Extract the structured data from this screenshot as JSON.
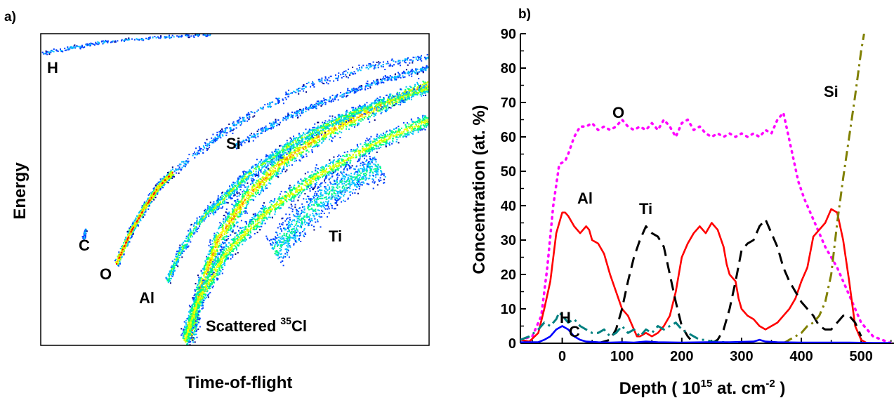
{
  "chart_data": [
    {
      "panel": "a)",
      "type": "heatmap",
      "xlabel": "Time-of-flight",
      "ylabel": "Energy",
      "element_labels": [
        "H",
        "C",
        "O",
        "Al",
        "Si",
        "Ti"
      ],
      "scattered_label": {
        "text": "Scattered ",
        "isotope": "35",
        "element": "Cl"
      },
      "colormap": [
        "#000080",
        "#0040ff",
        "#00c0ff",
        "#00ff80",
        "#c0ff00",
        "#ffff00",
        "#ff8000",
        "#ff0000"
      ]
    },
    {
      "panel": "b)",
      "type": "line",
      "xlabel_parts": {
        "pre": "Depth ( 10",
        "sup1": "15",
        "mid": " at. cm",
        "sup2": "-2",
        "post": " )"
      },
      "ylabel": "Concentration (at. %)",
      "xlim": [
        -70,
        555
      ],
      "ylim": [
        0,
        90
      ],
      "xticks": [
        0,
        100,
        200,
        300,
        400,
        500
      ],
      "yticks": [
        0,
        10,
        20,
        30,
        40,
        50,
        60,
        70,
        80,
        90
      ],
      "series": [
        {
          "name": "O",
          "color": "#ff00ff",
          "dash": "dot",
          "x": [
            -70,
            -50,
            -35,
            -25,
            -15,
            -5,
            5,
            10,
            20,
            30,
            40,
            50,
            60,
            70,
            80,
            90,
            100,
            110,
            120,
            130,
            140,
            150,
            160,
            170,
            180,
            190,
            200,
            210,
            220,
            230,
            240,
            250,
            260,
            270,
            280,
            290,
            300,
            310,
            320,
            330,
            340,
            350,
            360,
            370,
            375,
            385,
            395,
            405,
            420,
            440,
            460,
            480,
            500,
            520,
            550
          ],
          "y": [
            1,
            2,
            8,
            22,
            40,
            52,
            53,
            55,
            60,
            63,
            63,
            64,
            62,
            63,
            62,
            63,
            65,
            63,
            62,
            63,
            62,
            64,
            62,
            65,
            63,
            60,
            64,
            65,
            62,
            63,
            61,
            60,
            61,
            60,
            61,
            60,
            61,
            60,
            61,
            60,
            62,
            61,
            65,
            67,
            63,
            55,
            47,
            42,
            36,
            28,
            22,
            14,
            6,
            2,
            0
          ]
        },
        {
          "name": "Al",
          "color": "#ff0000",
          "dash": "solid",
          "x": [
            -70,
            -55,
            -40,
            -30,
            -20,
            -10,
            0,
            5,
            10,
            20,
            30,
            40,
            45,
            50,
            60,
            70,
            80,
            90,
            100,
            110,
            120,
            125,
            130,
            140,
            150,
            160,
            170,
            180,
            190,
            200,
            210,
            220,
            230,
            240,
            250,
            260,
            270,
            275,
            280,
            290,
            295,
            300,
            310,
            320,
            330,
            340,
            350,
            360,
            370,
            380,
            390,
            400,
            410,
            420,
            430,
            440,
            450,
            460,
            470,
            480,
            490,
            500,
            510,
            520,
            550
          ],
          "y": [
            1,
            0.5,
            3,
            10,
            18,
            32,
            38,
            38,
            37,
            34,
            32,
            34,
            33,
            30,
            29,
            26,
            20,
            15,
            10,
            8,
            4,
            2,
            2,
            3,
            2,
            3,
            5,
            8,
            15,
            25,
            29,
            32,
            34,
            32,
            35,
            33,
            28,
            23,
            20,
            18,
            13,
            10,
            8,
            7,
            5,
            4,
            5,
            6,
            8,
            10,
            13,
            18,
            22,
            31,
            33,
            35,
            39,
            38,
            30,
            18,
            5,
            1,
            0,
            0,
            0
          ]
        },
        {
          "name": "Ti",
          "color": "#000000",
          "dash": "dash",
          "x": [
            60,
            80,
            90,
            100,
            110,
            120,
            130,
            140,
            150,
            160,
            170,
            180,
            190,
            200,
            210,
            220,
            230,
            240,
            250,
            260,
            270,
            280,
            290,
            300,
            310,
            320,
            330,
            340,
            350,
            360,
            370,
            380,
            390,
            400,
            410,
            420,
            430,
            440,
            450,
            460,
            470,
            480,
            490,
            500
          ],
          "y": [
            0,
            1,
            4,
            10,
            18,
            25,
            30,
            34,
            32,
            31,
            28,
            20,
            12,
            5,
            2,
            0,
            0,
            0,
            0,
            1,
            4,
            10,
            18,
            27,
            29,
            30,
            34,
            36,
            32,
            28,
            22,
            18,
            15,
            12,
            10,
            8,
            5,
            4,
            4,
            6,
            8,
            8,
            6,
            2
          ]
        },
        {
          "name": "Si",
          "color": "#808000",
          "dash": "dashdot",
          "x": [
            370,
            380,
            390,
            400,
            410,
            420,
            430,
            440,
            450,
            460,
            470,
            480,
            490,
            500,
            505
          ],
          "y": [
            0,
            1,
            2,
            3,
            5,
            6,
            8,
            12,
            20,
            35,
            48,
            60,
            72,
            85,
            90
          ]
        },
        {
          "name": "H",
          "color": "#008080",
          "dash": "dashdot",
          "x": [
            -70,
            -55,
            -40,
            -30,
            -20,
            -10,
            -5,
            0,
            10,
            20,
            30,
            40,
            50,
            60,
            70,
            80,
            90,
            100,
            110,
            120,
            130,
            140,
            150,
            160,
            170,
            180,
            190,
            200,
            210,
            220,
            230,
            240,
            250,
            270,
            290,
            300
          ],
          "y": [
            1,
            2,
            4,
            6,
            5,
            7,
            9,
            8,
            6,
            7,
            5,
            4,
            3,
            3,
            4,
            2,
            3,
            5,
            3,
            4,
            2,
            4,
            3,
            5,
            4,
            5,
            6,
            4,
            3,
            2,
            1,
            1,
            0.5,
            0.3,
            0,
            0
          ]
        },
        {
          "name": "C",
          "color": "#0000ff",
          "dash": "solid",
          "x": [
            -70,
            -40,
            -30,
            -20,
            -10,
            0,
            10,
            20,
            30,
            40,
            60,
            80,
            100,
            120,
            140,
            160,
            200,
            240,
            280,
            320,
            330,
            340,
            360,
            400,
            440,
            480,
            520,
            550
          ],
          "y": [
            0.3,
            0.3,
            1,
            2,
            4,
            5,
            4,
            2,
            1,
            0.5,
            0.3,
            0.2,
            0.3,
            0.2,
            0.5,
            0.3,
            0.2,
            0.3,
            0.3,
            0.5,
            1,
            0.5,
            0.3,
            0.2,
            0.2,
            0.2,
            0.1,
            0.1
          ]
        }
      ],
      "series_labels": {
        "O": "O",
        "Al": "Al",
        "Ti": "Ti",
        "Si": "Si",
        "H": "H",
        "C": "C"
      }
    }
  ]
}
